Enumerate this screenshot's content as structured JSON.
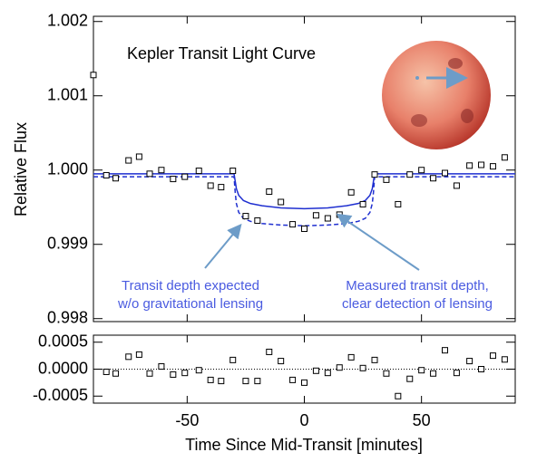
{
  "chart_data": [
    {
      "type": "scatter",
      "title": "Kepler Transit Light Curve",
      "ylabel": "Relative Flux",
      "x": [
        -90,
        -84.5,
        -80.5,
        -75,
        -70.5,
        -66,
        -61,
        -56,
        -51,
        -45,
        -40,
        -35.5,
        -30.5,
        -25,
        -20,
        -15,
        -10,
        -5,
        0,
        5,
        10,
        15,
        20,
        25,
        30,
        35,
        40,
        45,
        50,
        55,
        60,
        65,
        70.5,
        75.5,
        80.5,
        85.5
      ],
      "values": [
        1.00128,
        0.99993,
        0.99989,
        1.00013,
        1.00018,
        0.99995,
        1.0,
        0.99988,
        0.99991,
        0.99999,
        0.99979,
        0.99977,
        0.99999,
        0.99938,
        0.99932,
        0.99971,
        0.99957,
        0.99927,
        0.99921,
        0.99939,
        0.99935,
        0.9994,
        0.9997,
        0.99954,
        0.99994,
        0.99987,
        0.99954,
        0.99994,
        1.0,
        0.99989,
        0.99996,
        0.99979,
        1.00006,
        1.00007,
        1.00005,
        1.00017
      ],
      "color": "#000000",
      "lines": [
        {
          "x": [
            -90,
            -30,
            -29.5,
            -29,
            -28,
            -26,
            -23,
            -18,
            -10,
            0,
            10,
            18,
            23,
            26,
            28,
            29,
            29.5,
            30,
            90
          ],
          "values": [
            0.99995,
            0.99995,
            0.99985,
            0.99975,
            0.99966,
            0.99959,
            0.99955,
            0.99952,
            0.99949,
            0.99948,
            0.99949,
            0.99952,
            0.99955,
            0.99959,
            0.99966,
            0.99975,
            0.99985,
            0.99995,
            0.99995
          ],
          "color": "#1f2fd0",
          "dashed": false
        },
        {
          "x": [
            -90,
            -30,
            -29.5,
            -29,
            -28,
            -26,
            -23,
            -18,
            -10,
            0,
            10,
            18,
            23,
            26,
            28,
            29,
            29.5,
            30,
            90
          ],
          "values": [
            0.99991,
            0.99991,
            0.9997,
            0.99955,
            0.99943,
            0.99935,
            0.99931,
            0.99928,
            0.99926,
            0.99925,
            0.99926,
            0.99928,
            0.99931,
            0.99935,
            0.99943,
            0.99955,
            0.9997,
            0.99991,
            0.99991
          ],
          "color": "#1f2fd0",
          "dashed": true
        }
      ],
      "annotations": [
        {
          "lines": [
            "Transit depth expected",
            "w/o gravitational lensing"
          ],
          "color": "#4a5be0"
        },
        {
          "lines": [
            "Measured transit depth,",
            "clear detection of lensing"
          ],
          "color": "#4a5be0"
        }
      ],
      "xlim": [
        -90,
        90
      ],
      "ylim": [
        0.99796,
        1.00207
      ],
      "yticks": [
        0.998,
        0.999,
        {
          "value": 1,
          "label": "1.000"
        },
        1.001,
        1.002
      ]
    },
    {
      "type": "scatter",
      "xlabel": "Time Since Mid-Transit [minutes]",
      "x": [
        -84.5,
        -80.5,
        -75,
        -70.5,
        -66,
        -61,
        -56,
        -51,
        -45,
        -40,
        -35.5,
        -30.5,
        -25,
        -20,
        -15,
        -10,
        -5,
        0,
        5,
        10,
        15,
        20,
        25,
        30,
        35,
        40,
        45,
        50,
        55,
        60,
        65,
        70.5,
        75.5,
        80.5,
        85.5
      ],
      "values": [
        -5e-05,
        -8e-05,
        0.00023,
        0.00027,
        -8e-05,
        5e-05,
        -0.0001,
        -7e-05,
        -2e-05,
        -0.0002,
        -0.00022,
        0.00017,
        -0.00022,
        -0.00022,
        0.00032,
        0.00015,
        -0.0002,
        -0.00025,
        -3e-05,
        -7e-05,
        3e-05,
        0.00022,
        2e-05,
        0.00017,
        -8e-05,
        -0.0005,
        -0.00018,
        -2e-05,
        -8e-05,
        0.00035,
        -7e-05,
        0.00015,
        0,
        0.00025,
        0.00018
      ],
      "color": "#000000",
      "xlim": [
        -90,
        90
      ],
      "ylim": [
        -0.00063,
        0.00063
      ],
      "xticks": [
        -50,
        0,
        50
      ],
      "yticks": [
        -0.0005,
        {
          "value": 0,
          "label": "0.0000"
        },
        0.0005
      ]
    }
  ]
}
